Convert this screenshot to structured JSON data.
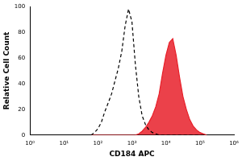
{
  "chart_data": {
    "type": "line",
    "x_label": "CD184 APC",
    "y_label": "Relative Cell Count",
    "x": [
      63,
      79,
      100,
      126,
      158,
      200,
      251,
      316,
      398,
      501,
      631,
      794,
      1000,
      1259,
      1585,
      1995,
      2512,
      3162,
      3981,
      5012,
      6310,
      7943,
      10000,
      12589,
      15849,
      19953,
      25119,
      31623,
      39811,
      50119,
      63096,
      79433,
      100000,
      125893,
      158489
    ],
    "series": [
      {
        "type": "line",
        "color": "#000000",
        "line_style": "dashed",
        "values": [
          0,
          2,
          5,
          10,
          18,
          25,
          32,
          42,
          52,
          65,
          85,
          98,
          88,
          55,
          30,
          15,
          8,
          4,
          2,
          1,
          0,
          0,
          0,
          0,
          0,
          0,
          0,
          0,
          0,
          0,
          0,
          0,
          0,
          0,
          0
        ]
      },
      {
        "type": "area",
        "color": "#e8202a",
        "line_style": "solid",
        "values": [
          0,
          0,
          0,
          0,
          0,
          0,
          0,
          0,
          0,
          0,
          0,
          0,
          0,
          0,
          1,
          3,
          6,
          10,
          15,
          22,
          32,
          48,
          62,
          72,
          75,
          62,
          45,
          30,
          20,
          12,
          7,
          4,
          2,
          1,
          0
        ]
      }
    ],
    "log": "x",
    "xlim": [
      1,
      1000000
    ],
    "xticks": [
      {
        "value": 1,
        "label": "10⁰"
      },
      {
        "value": 10,
        "label": "10¹"
      },
      {
        "value": 100,
        "label": "10²"
      },
      {
        "value": 1000,
        "label": "10³"
      },
      {
        "value": 10000,
        "label": "10⁴"
      },
      {
        "value": 100000,
        "label": "10⁵"
      },
      {
        "value": 1000000,
        "label": "10⁶"
      }
    ],
    "ylim": [
      0,
      100
    ],
    "yticks": [
      0,
      20,
      40,
      60,
      80,
      100
    ],
    "grid": false
  }
}
